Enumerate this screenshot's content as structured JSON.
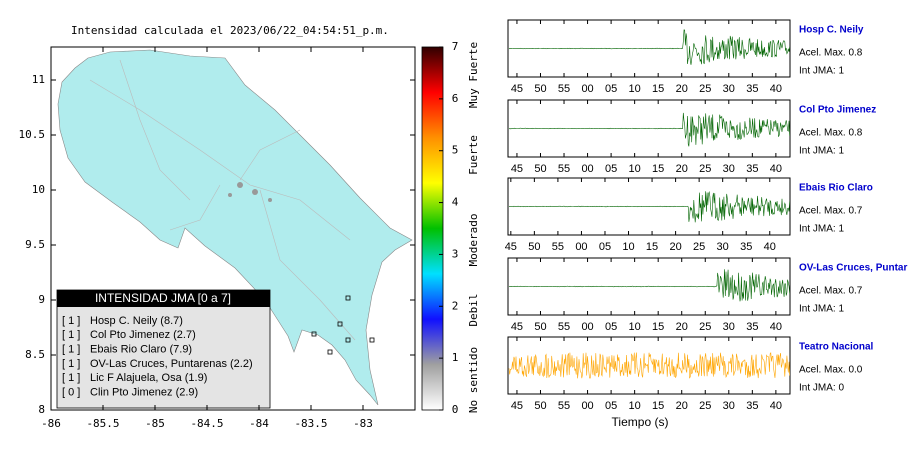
{
  "map": {
    "title": "Intensidad calculada el 2023/06/22_04:54:51_p.m.",
    "xlim": [
      -86,
      -82.5
    ],
    "ylim": [
      8,
      11.3
    ],
    "xticks": [
      -86,
      -85.5,
      -85,
      -84.5,
      -84,
      -83.5,
      -83
    ],
    "yticks": [
      8,
      8.5,
      9,
      9.5,
      10,
      10.5,
      11
    ],
    "land_color": "#b0eced",
    "legend": {
      "title": "INTENSIDAD JMA [0 a 7]",
      "rows": [
        {
          "intensity": "[ 1 ]",
          "label": "Hosp C. Neily (8.7)"
        },
        {
          "intensity": "[ 1 ]",
          "label": "Col Pto Jimenez (2.7)"
        },
        {
          "intensity": "[ 1 ]",
          "label": "Ebais Rio Claro (7.9)"
        },
        {
          "intensity": "[ 1 ]",
          "label": "OV-Las Cruces, Puntarenas (2.2)"
        },
        {
          "intensity": "[ 1 ]",
          "label": "Lic F Alajuela, Osa (1.9)"
        },
        {
          "intensity": "[ 0 ]",
          "label": "Clin Pto Jimenez (2.9)"
        }
      ]
    }
  },
  "colorbar": {
    "ylim": [
      0,
      7
    ],
    "yticks": [
      0,
      1,
      2,
      3,
      4,
      5,
      6,
      7
    ],
    "colors": [
      "#ffffff",
      "#a0a0a0",
      "#1010ff",
      "#00e0ff",
      "#00c000",
      "#ffff00",
      "#ff9000",
      "#ff0000",
      "#300000"
    ],
    "labels": [
      "No sentido",
      "Debil",
      "Moderado",
      "Fuerte",
      "Muy Fuerte"
    ]
  },
  "waveforms": {
    "xlabel": "Tiempo (s)",
    "panels": [
      {
        "name": "Hosp C. Neily",
        "acel": "Acel. Max. 0.8",
        "int": "Int JMA: 1",
        "color": "#006400",
        "xlim": [
          43.1,
          103
        ]
      },
      {
        "name": "Col Pto Jimenez",
        "acel": "Acel. Max. 0.8",
        "int": "Int JMA: 1",
        "color": "#006400",
        "xlim": [
          43.1,
          103
        ]
      },
      {
        "name": "Ebais Rio Claro",
        "acel": "Acel. Max. 0.7",
        "int": "Int JMA: 1",
        "color": "#006400",
        "xlim": [
          44.4,
          104.3
        ]
      },
      {
        "name": "OV-Las Cruces, Puntar",
        "acel": "Acel. Max. 0.7",
        "int": "Int JMA: 1",
        "color": "#006400",
        "xlim": [
          43.1,
          103
        ]
      },
      {
        "name": "Teatro Nacional",
        "acel": "Acel. Max. 0.0",
        "int": "Int JMA: 0",
        "color": "#ffa500",
        "xlim": [
          43.1,
          103
        ]
      }
    ],
    "xticks": [
      45,
      50,
      55,
      {
        "value": 60,
        "label": "00"
      },
      {
        "value": 65,
        "label": "05"
      },
      {
        "value": 70,
        "label": "10"
      },
      {
        "value": 75,
        "label": "15"
      },
      {
        "value": 80,
        "label": "20"
      },
      {
        "value": 85,
        "label": "25"
      },
      {
        "value": 90,
        "label": "30"
      },
      {
        "value": 95,
        "label": "35"
      },
      {
        "value": 100,
        "label": "40"
      }
    ]
  }
}
